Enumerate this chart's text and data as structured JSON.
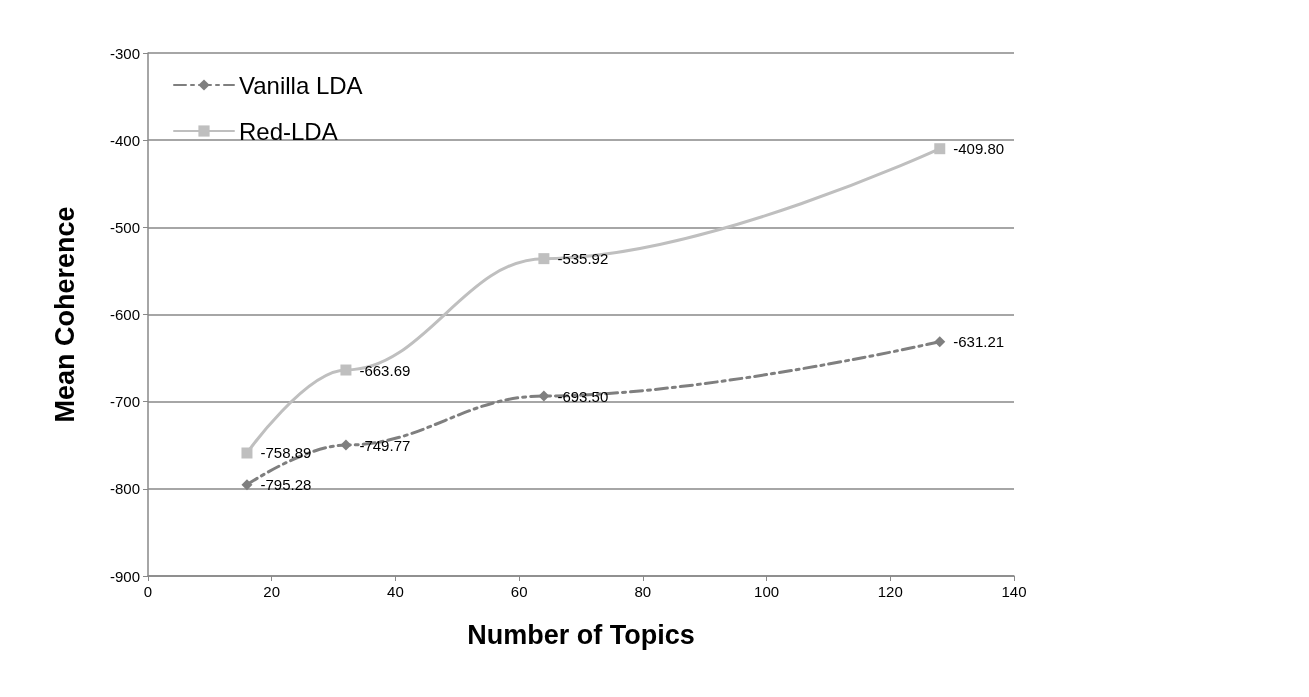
{
  "chart_data": {
    "type": "line",
    "xlabel": "Number of Topics",
    "ylabel": "Mean Coherence",
    "x": [
      16,
      32,
      64,
      128
    ],
    "series": [
      {
        "name": "Vanilla LDA",
        "color": "#7f7f7f",
        "values": [
          -795.28,
          -749.77,
          -693.5,
          -631.21
        ],
        "value_labels": [
          "-795.28",
          "-749.77",
          "-693.50",
          "-631.21"
        ],
        "marker": "diamond",
        "line_style": "dashed"
      },
      {
        "name": "Red-LDA",
        "color": "#bfbfbf",
        "values": [
          -758.89,
          -663.69,
          -535.92,
          -409.8
        ],
        "value_labels": [
          "-758.89",
          "-663.69",
          "-535.92",
          "-409.80"
        ],
        "marker": "square",
        "line_style": "solid"
      }
    ],
    "xlim": [
      0,
      140
    ],
    "xticks": [
      0,
      20,
      40,
      60,
      80,
      100,
      120,
      140
    ],
    "ylim": [
      -900,
      -300
    ],
    "yticks": [
      -900,
      -800,
      -700,
      -600,
      -500,
      -400,
      -300
    ],
    "grid": "y",
    "legend": "top left"
  }
}
